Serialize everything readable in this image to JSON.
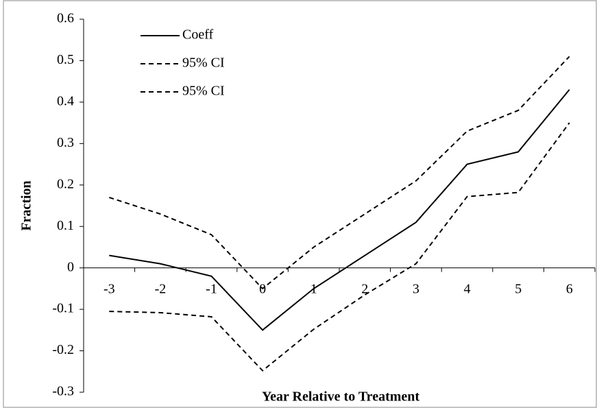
{
  "chart_data": {
    "type": "line",
    "x_label": "Year Relative to Treatment",
    "y_label": "Fraction",
    "categories": [
      "-3",
      "-2",
      "-1",
      "0",
      "1",
      "2",
      "3",
      "4",
      "5",
      "6"
    ],
    "series": [
      {
        "name": "Coeff",
        "color": "#000000",
        "style": "solid",
        "values": [
          0.03,
          0.01,
          -0.02,
          -0.15,
          -0.05,
          0.03,
          0.11,
          0.25,
          0.28,
          0.43
        ]
      },
      {
        "name": "95% CI",
        "color": "#000000",
        "style": "dashed",
        "values": [
          0.17,
          0.13,
          0.08,
          -0.05,
          0.05,
          0.13,
          0.21,
          0.33,
          0.38,
          0.51
        ]
      },
      {
        "name": "95% CI",
        "color": "#000000",
        "style": "dashed",
        "values": [
          -0.105,
          -0.108,
          -0.118,
          -0.248,
          -0.148,
          -0.065,
          0.01,
          0.172,
          0.182,
          0.35
        ]
      }
    ],
    "ylim": [
      -0.3,
      0.6
    ],
    "yticks": [
      0.6,
      0.5,
      0.4,
      0.3,
      0.2,
      0.1,
      0,
      -0.1,
      -0.2,
      -0.3
    ],
    "grid": false,
    "legend": "top-left"
  }
}
